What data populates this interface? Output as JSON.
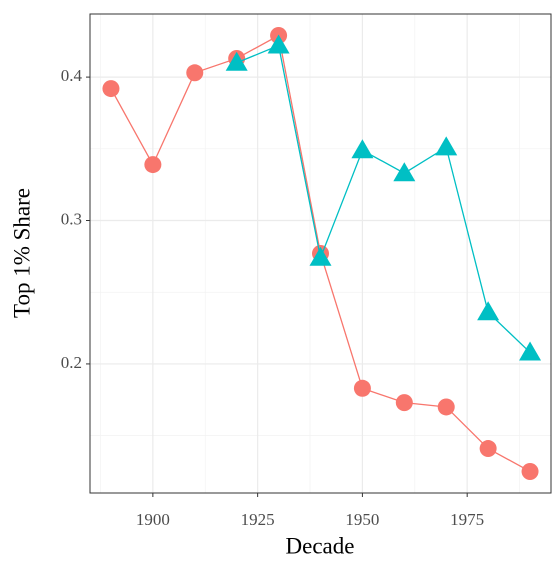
{
  "chart_data": {
    "type": "line",
    "x_label": "Decade",
    "y_label": "Top 1% Share",
    "x": [
      1890,
      1900,
      1910,
      1920,
      1930,
      1940,
      1950,
      1960,
      1970,
      1980,
      1990
    ],
    "series": [
      {
        "color": "#F8766D",
        "marker": "circle",
        "values": [
          0.392,
          0.339,
          0.403,
          0.413,
          0.429,
          0.277,
          0.183,
          0.173,
          0.17,
          0.141,
          0.125
        ]
      },
      {
        "color": "#00BFC4",
        "marker": "triangle",
        "values": [
          null,
          null,
          null,
          0.41,
          0.422,
          0.274,
          0.349,
          0.333,
          0.351,
          0.236,
          0.208
        ]
      }
    ],
    "xlim": [
      1885,
      1995
    ],
    "xticks": [
      1900,
      1925,
      1950,
      1975
    ],
    "ylim": [
      0.11,
      0.444
    ],
    "yticks": [
      0.2,
      0.3,
      0.4
    ],
    "grid": true
  }
}
